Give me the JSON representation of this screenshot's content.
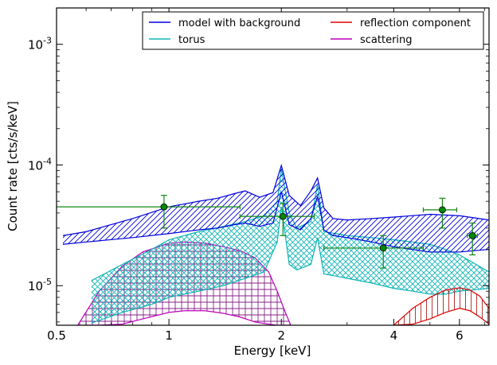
{
  "chart_data": {
    "type": "line",
    "xlabel": "Energy [keV]",
    "ylabel": "Count rate [cts/s/keV]",
    "x_scale": "log",
    "y_scale": "log",
    "xlim": [
      0.5,
      7.2
    ],
    "ylim": [
      4.7e-06,
      0.002
    ],
    "x_ticks": [
      {
        "value": 0.5,
        "label": "0.5"
      },
      {
        "value": 1,
        "label": "1"
      },
      {
        "value": 2,
        "label": "2"
      },
      {
        "value": 4,
        "label": "4"
      },
      {
        "value": 6,
        "label": "6"
      }
    ],
    "y_ticks": [
      {
        "value": 1e-05,
        "base": "10",
        "exp": "-5"
      },
      {
        "value": 0.0001,
        "base": "10",
        "exp": "-4"
      },
      {
        "value": 0.001,
        "base": "10",
        "exp": "-3"
      }
    ],
    "legend_position": "top-right",
    "legend_columns": 2,
    "series": [
      {
        "name": "model with background",
        "color": "#0000dd",
        "hatch": "diagonal",
        "x": [
          0.52,
          0.6,
          0.8,
          1.0,
          1.2,
          1.35,
          1.5,
          1.6,
          1.75,
          1.9,
          2.0,
          2.1,
          2.25,
          2.4,
          2.5,
          2.6,
          2.75,
          3.0,
          3.5,
          4.0,
          5.0,
          6.0,
          7.2
        ],
        "upper": [
          2.6e-05,
          2.8e-05,
          3.6e-05,
          4.5e-05,
          5e-05,
          5.3e-05,
          5.8e-05,
          6.1e-05,
          5.4e-05,
          5.9e-05,
          9.9e-05,
          5.6e-05,
          4.6e-05,
          6.1e-05,
          7.8e-05,
          4.4e-05,
          3.6e-05,
          3.5e-05,
          3.6e-05,
          3.7e-05,
          3.9e-05,
          3.8e-05,
          3.5e-05
        ],
        "lower": [
          2.2e-05,
          2.3e-05,
          2.5e-05,
          2.7e-05,
          2.9e-05,
          3e-05,
          3.2e-05,
          3.3e-05,
          3.1e-05,
          3.3e-05,
          6e-05,
          3.2e-05,
          2.9e-05,
          3.6e-05,
          5.5e-05,
          2.9e-05,
          2.6e-05,
          2.5e-05,
          2.3e-05,
          2.1e-05,
          1.9e-05,
          1.9e-05,
          2e-05
        ]
      },
      {
        "name": "torus",
        "color": "#11b5b5",
        "hatch": "cross",
        "x": [
          0.62,
          0.75,
          0.9,
          1.0,
          1.2,
          1.4,
          1.6,
          1.8,
          1.95,
          2.0,
          2.1,
          2.2,
          2.4,
          2.5,
          2.6,
          2.8,
          3.0,
          3.5,
          4.0,
          4.5,
          5.0,
          5.5,
          6.0,
          7.2
        ],
        "upper": [
          1.1e-05,
          1.5e-05,
          2e-05,
          2.4e-05,
          2.8e-05,
          3.1e-05,
          3.4e-05,
          3.8e-05,
          5e-05,
          9.3e-05,
          4e-05,
          3e-05,
          3.4e-05,
          6.9e-05,
          2.8e-05,
          2.7e-05,
          2.6e-05,
          2.5e-05,
          2.4e-05,
          2.3e-05,
          2.2e-05,
          2e-05,
          1.8e-05,
          1.3e-05
        ],
        "lower": [
          4.9e-06,
          6e-06,
          7e-06,
          8e-06,
          9e-06,
          1e-05,
          1.15e-05,
          1.3e-05,
          2.3e-05,
          4.5e-05,
          1.5e-05,
          1.35e-05,
          1.5e-05,
          2.5e-05,
          1.25e-05,
          1.2e-05,
          1.15e-05,
          1.05e-05,
          9.5e-06,
          9e-06,
          8.5e-06,
          8.5e-06,
          9e-06,
          9.5e-06
        ]
      },
      {
        "name": "reflection component",
        "color": "#dd0000",
        "hatch": "vertical",
        "x": [
          4.0,
          4.5,
          5.0,
          5.5,
          6.0,
          6.4,
          6.8,
          7.2
        ],
        "upper": [
          4.7e-06,
          6.5e-06,
          8e-06,
          9.2e-06,
          9.6e-06,
          9.2e-06,
          8.2e-06,
          6.5e-06
        ],
        "lower": [
          4.7e-06,
          4.8e-06,
          5.3e-06,
          6e-06,
          6.5e-06,
          6.2e-06,
          5.5e-06,
          4.8e-06
        ]
      },
      {
        "name": "scattering",
        "color": "#bb00bb",
        "hatch": "grid",
        "x": [
          0.57,
          0.65,
          0.75,
          0.85,
          1.0,
          1.1,
          1.25,
          1.4,
          1.55,
          1.7,
          1.85,
          1.95,
          2.05,
          2.12
        ],
        "upper": [
          4.7e-06,
          9e-06,
          1.45e-05,
          1.9e-05,
          2.25e-05,
          2.3e-05,
          2.25e-05,
          2.1e-05,
          1.95e-05,
          1.7e-05,
          1.3e-05,
          9e-06,
          6e-06,
          4.7e-06
        ],
        "lower": [
          4.7e-06,
          4.7e-06,
          4.8e-06,
          5.3e-06,
          6e-06,
          6.2e-06,
          6.2e-06,
          5.9e-06,
          5.5e-06,
          5e-06,
          4.8e-06,
          4.7e-06,
          4.7e-06,
          4.7e-06
        ]
      }
    ],
    "data_points": {
      "color": "#118811",
      "marker_color": "#008800",
      "points": [
        {
          "x": 0.97,
          "y": 4.5e-05,
          "xerr": [
            0.5,
            1.55
          ],
          "yerr": [
            3e-05,
            5.6e-05
          ]
        },
        {
          "x": 2.02,
          "y": 3.75e-05,
          "xerr": [
            1.55,
            2.45
          ],
          "yerr": [
            2.6e-05,
            4.8e-05
          ]
        },
        {
          "x": 3.75,
          "y": 2.05e-05,
          "xerr": [
            2.6,
            4.8
          ],
          "yerr": [
            1.4e-05,
            2.6e-05
          ]
        },
        {
          "x": 5.4,
          "y": 4.25e-05,
          "xerr": [
            4.8,
            5.9
          ],
          "yerr": [
            3e-05,
            5.3e-05
          ]
        },
        {
          "x": 6.5,
          "y": 2.6e-05,
          "xerr": [
            6.3,
            6.7
          ],
          "yerr": [
            1.8e-05,
            3.3e-05
          ]
        }
      ]
    }
  }
}
